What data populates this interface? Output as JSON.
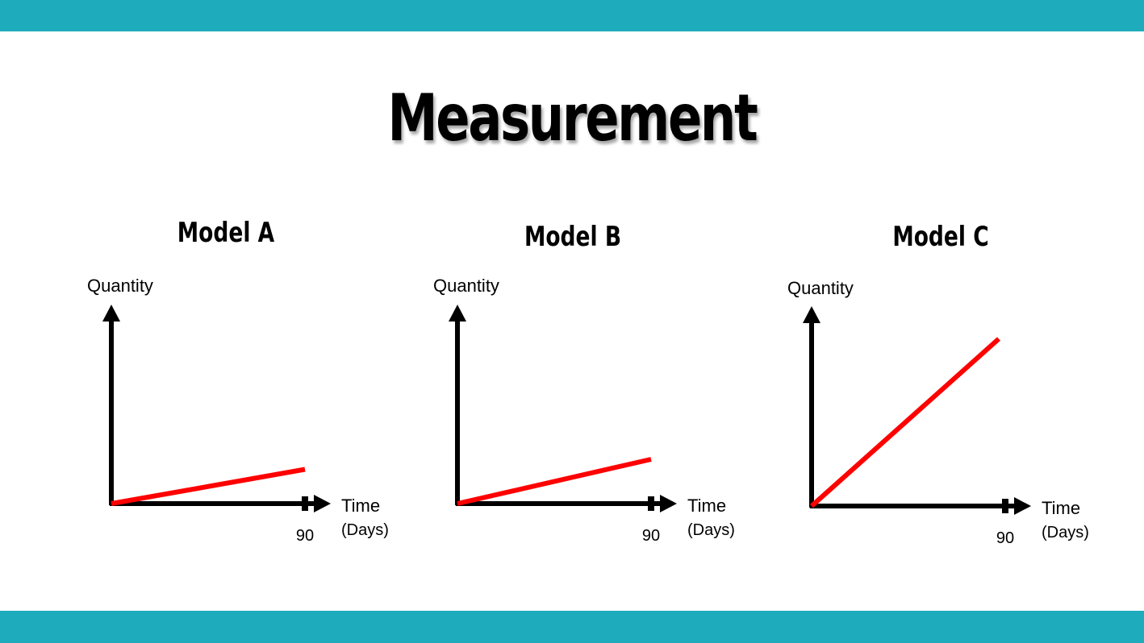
{
  "page": {
    "title": "Measurement",
    "band_color": "#1EABBC",
    "line_color": "#FF0000",
    "axis_color": "#000000"
  },
  "chart_data": [
    {
      "type": "line",
      "title": "Model A",
      "ylabel": "Quantity",
      "xlabel": "Time",
      "xunit": "(Days)",
      "x_ticks": [
        90
      ],
      "xlim": [
        0,
        100
      ],
      "ylim": [
        0,
        100
      ],
      "series": [
        {
          "x": [
            0,
            90
          ],
          "y": [
            0,
            17
          ]
        }
      ]
    },
    {
      "type": "line",
      "title": "Model B",
      "ylabel": "Quantity",
      "xlabel": "Time",
      "xunit": "(Days)",
      "x_ticks": [
        90
      ],
      "xlim": [
        0,
        100
      ],
      "ylim": [
        0,
        100
      ],
      "series": [
        {
          "x": [
            0,
            90
          ],
          "y": [
            0,
            22
          ]
        }
      ]
    },
    {
      "type": "line",
      "title": "Model C",
      "ylabel": "Quantity",
      "xlabel": "Time",
      "xunit": "(Days)",
      "x_ticks": [
        90
      ],
      "xlim": [
        0,
        100
      ],
      "ylim": [
        0,
        100
      ],
      "series": [
        {
          "x": [
            0,
            87
          ],
          "y": [
            0,
            83
          ]
        }
      ]
    }
  ]
}
